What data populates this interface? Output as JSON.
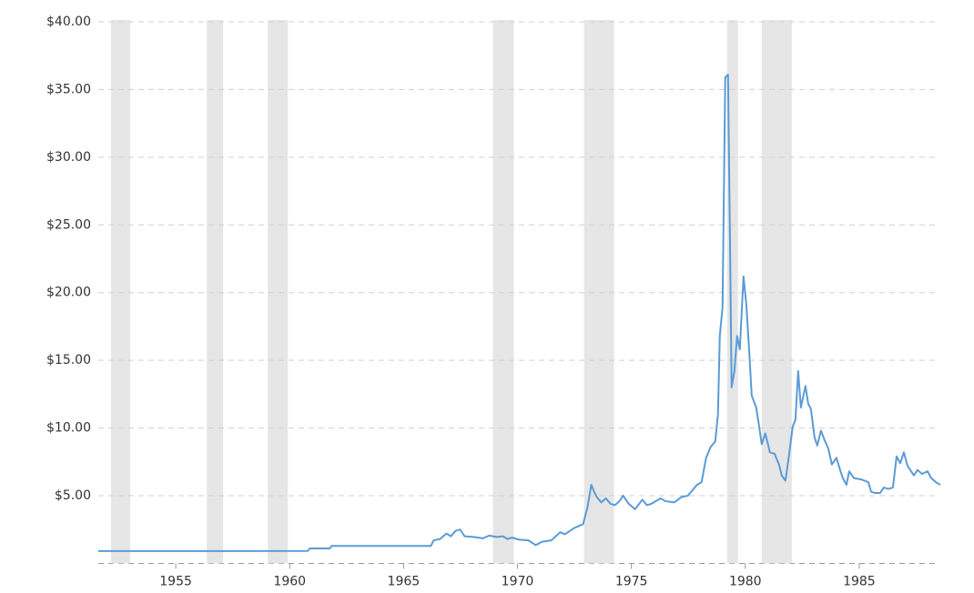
{
  "chart_data": {
    "type": "line",
    "x": [
      1951.6,
      1956.8,
      1960.8,
      1960.88,
      1961.76,
      1961.84,
      1966.2,
      1966.32,
      1966.6,
      1966.88,
      1967.08,
      1967.28,
      1967.48,
      1967.68,
      1968.08,
      1968.48,
      1968.76,
      1969.08,
      1969.36,
      1969.56,
      1969.76,
      1970.08,
      1970.48,
      1970.8,
      1971.08,
      1971.48,
      1971.88,
      1972.08,
      1972.48,
      1972.88,
      1973.08,
      1973.24,
      1973.36,
      1973.48,
      1973.68,
      1973.88,
      1974.08,
      1974.28,
      1974.48,
      1974.64,
      1974.88,
      1975.16,
      1975.48,
      1975.68,
      1975.88,
      1976.28,
      1976.48,
      1976.88,
      1977.2,
      1977.48,
      1977.68,
      1977.88,
      1978.08,
      1978.28,
      1978.48,
      1978.68,
      1978.8,
      1978.88,
      1979.0,
      1979.12,
      1979.24,
      1979.32,
      1979.4,
      1979.52,
      1979.64,
      1979.76,
      1979.92,
      1980.04,
      1980.16,
      1980.28,
      1980.48,
      1980.6,
      1980.72,
      1980.88,
      1981.08,
      1981.28,
      1981.48,
      1981.6,
      1981.76,
      1981.92,
      1982.08,
      1982.2,
      1982.32,
      1982.44,
      1982.64,
      1982.76,
      1982.88,
      1983.04,
      1983.16,
      1983.32,
      1983.48,
      1983.64,
      1983.8,
      1984.0,
      1984.16,
      1984.28,
      1984.44,
      1984.56,
      1984.76,
      1985.08,
      1985.4,
      1985.52,
      1985.68,
      1985.92,
      1986.08,
      1986.28,
      1986.48,
      1986.64,
      1986.8,
      1986.96,
      1987.12,
      1987.4,
      1987.56,
      1987.76,
      1988.0,
      1988.16,
      1988.36,
      1988.56
    ],
    "series": [
      {
        "color": "#5b9bd5",
        "values": [
          0.91,
          0.91,
          0.92,
          1.1,
          1.1,
          1.29,
          1.29,
          1.7,
          1.8,
          2.2,
          2.0,
          2.4,
          2.5,
          2.0,
          1.95,
          1.85,
          2.05,
          1.95,
          2.0,
          1.8,
          1.9,
          1.75,
          1.7,
          1.35,
          1.6,
          1.7,
          2.3,
          2.15,
          2.6,
          2.9,
          4.2,
          5.8,
          5.3,
          4.9,
          4.5,
          4.8,
          4.4,
          4.3,
          4.6,
          5.0,
          4.4,
          4.0,
          4.7,
          4.3,
          4.4,
          4.8,
          4.6,
          4.5,
          4.9,
          5.0,
          5.4,
          5.8,
          6.0,
          7.8,
          8.6,
          9.0,
          11.0,
          16.8,
          18.9,
          35.9,
          36.1,
          25.0,
          13.0,
          14.2,
          16.8,
          15.8,
          21.2,
          19.2,
          16.0,
          12.4,
          11.5,
          10.2,
          8.8,
          9.6,
          8.2,
          8.1,
          7.3,
          6.5,
          6.1,
          8.0,
          10.1,
          10.6,
          14.2,
          11.5,
          13.1,
          11.8,
          11.4,
          9.3,
          8.7,
          9.8,
          9.1,
          8.5,
          7.3,
          7.8,
          6.9,
          6.3,
          5.8,
          6.8,
          6.3,
          6.2,
          6.0,
          5.3,
          5.2,
          5.2,
          5.6,
          5.5,
          5.6,
          7.9,
          7.4,
          8.2,
          7.2,
          6.5,
          6.9,
          6.6,
          6.8,
          6.3,
          6.0,
          5.8
        ]
      }
    ],
    "shaded_ranges": [
      [
        1952.16,
        1953.0
      ],
      [
        1956.36,
        1957.08
      ],
      [
        1959.04,
        1959.92
      ],
      [
        1968.92,
        1969.84
      ],
      [
        1972.92,
        1974.24
      ],
      [
        1979.2,
        1979.68
      ],
      [
        1980.72,
        1982.04
      ]
    ],
    "shade_color": "#e6e6e6",
    "xlim": [
      1951.6,
      1988.56
    ],
    "xticks": [
      1955,
      1960,
      1965,
      1970,
      1975,
      1980,
      1985
    ],
    "ylim": [
      0,
      40
    ],
    "yticks": [
      {
        "value": 5,
        "label": "$5.00"
      },
      {
        "value": 10,
        "label": "$10.00"
      },
      {
        "value": 15,
        "label": "$15.00"
      },
      {
        "value": 20,
        "label": "$20.00"
      },
      {
        "value": 25,
        "label": "$25.00"
      },
      {
        "value": 30,
        "label": "$30.00"
      },
      {
        "value": 35,
        "label": "$35.00"
      },
      {
        "value": 40,
        "label": "$40.00"
      }
    ],
    "grid": true
  }
}
